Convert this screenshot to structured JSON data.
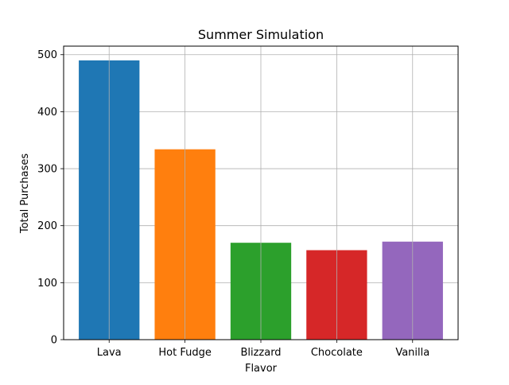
{
  "chart_data": {
    "type": "bar",
    "title": "Summer Simulation",
    "xlabel": "Flavor",
    "ylabel": "Total Purchases",
    "categories": [
      "Lava",
      "Hot Fudge",
      "Blizzard",
      "Chocolate",
      "Vanilla"
    ],
    "values": [
      490,
      334,
      170,
      157,
      172
    ],
    "colors": [
      "#1f77b4",
      "#ff7f0e",
      "#2ca02c",
      "#d62728",
      "#9467bd"
    ],
    "ylim": [
      0,
      515
    ],
    "yticks": [
      0,
      100,
      200,
      300,
      400,
      500
    ],
    "grid": true,
    "legend": "none"
  }
}
